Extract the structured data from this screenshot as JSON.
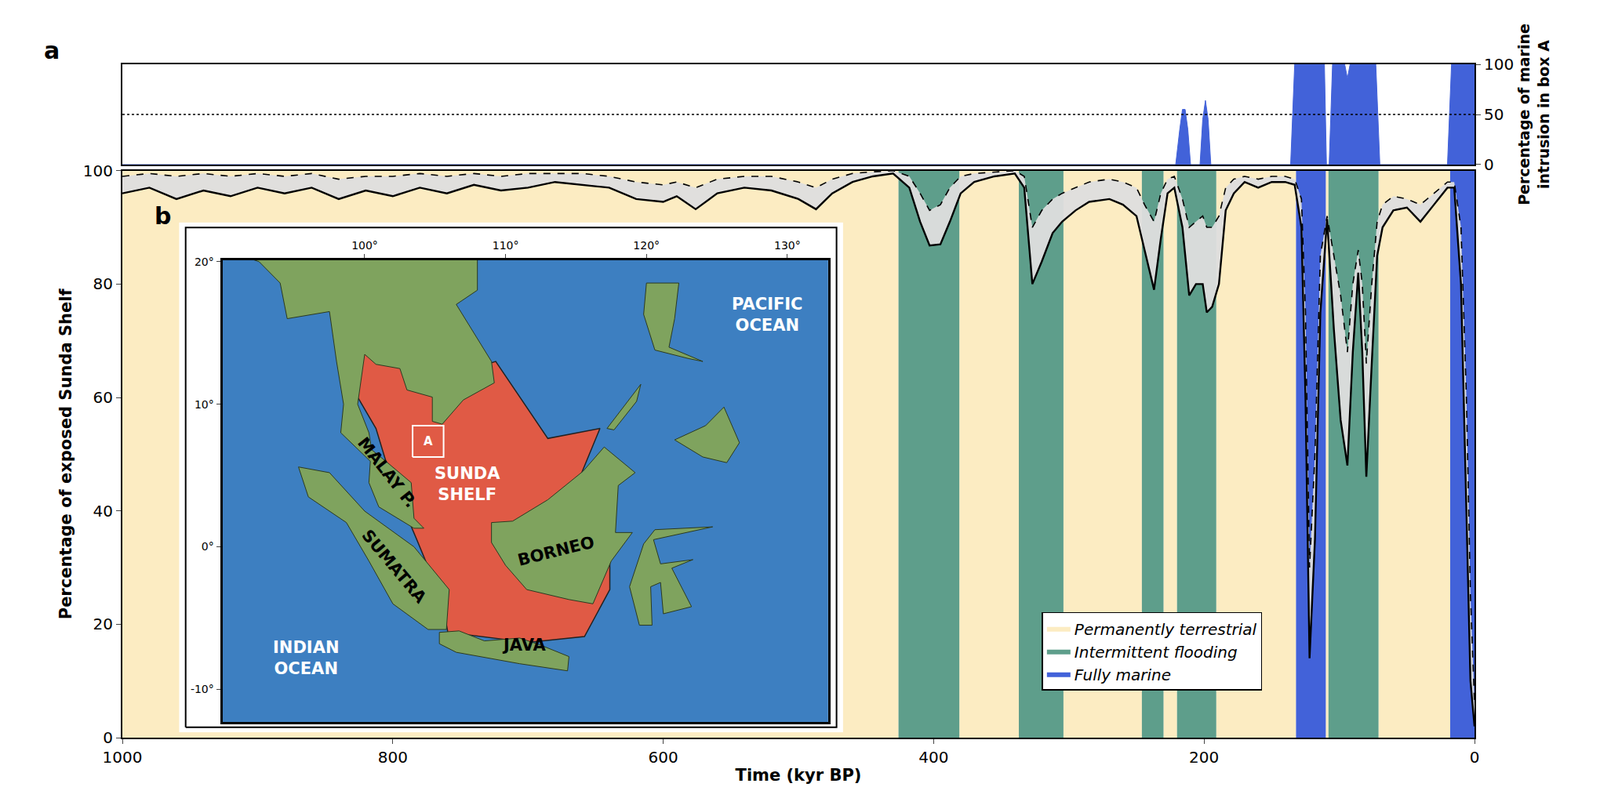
{
  "chart_data": [
    {
      "panel_label": "a",
      "type": "area",
      "y_label": [
        "Percentage of marine",
        "intrusion in box A"
      ],
      "x": [
        1000,
        221,
        218,
        216,
        214,
        212,
        210,
        203,
        201,
        199,
        197,
        195,
        136,
        133,
        111,
        109.5,
        107.5,
        105,
        96,
        94,
        92,
        73,
        70,
        20,
        17,
        0
      ],
      "values": [
        0,
        0,
        35,
        55,
        55,
        35,
        0,
        0,
        45,
        64,
        45,
        0,
        0,
        100,
        100,
        0,
        0,
        100,
        100,
        86,
        100,
        100,
        0,
        0,
        100,
        100
      ],
      "color": "#4262d9",
      "xlim": [
        1000,
        0
      ],
      "ylim": [
        0,
        100
      ],
      "yticks": [
        0,
        50,
        100
      ],
      "tick_labels": "y",
      "reference_lines": [
        {
          "value": 50,
          "line_style": "dotted"
        }
      ]
    },
    {
      "panel_label": "b",
      "type": "line",
      "x_label": "Time (kyr BP)",
      "y_label": "Percentage of exposed Sunda Shelf",
      "x": [
        1000,
        980,
        960,
        940,
        920,
        900,
        880,
        860,
        840,
        820,
        800,
        780,
        760,
        740,
        720,
        700,
        680,
        660,
        640,
        620,
        600,
        590,
        576,
        560,
        540,
        520,
        500,
        487,
        475,
        460,
        445,
        430,
        418,
        410,
        403,
        395,
        388,
        380,
        370,
        355,
        340,
        333,
        327,
        320,
        312,
        305,
        295,
        285,
        270,
        260,
        250,
        244,
        237,
        232,
        227,
        222,
        216,
        211,
        206,
        201,
        198,
        194,
        189,
        184,
        178,
        170,
        160,
        150,
        140,
        133,
        128,
        125,
        122,
        118,
        114,
        109,
        104,
        99,
        94,
        90,
        86,
        83,
        80,
        76,
        72,
        68,
        60,
        50,
        40,
        30,
        20,
        15,
        10,
        6,
        3,
        0
      ],
      "series": [
        {
          "line_style": "dashed",
          "color": "#000000",
          "values": [
            99,
            99.5,
            99,
            99.5,
            99,
            99.5,
            99,
            99.5,
            98.5,
            99,
            99,
            99.5,
            99,
            99.5,
            99,
            99.5,
            99.5,
            99.5,
            99,
            98,
            97.5,
            98,
            97,
            98.5,
            99,
            99,
            98,
            97,
            98.5,
            99.5,
            99.8,
            100,
            99,
            96,
            93,
            94,
            97,
            99,
            99.5,
            99.8,
            100,
            99,
            90,
            93,
            95,
            96,
            97,
            98,
            98.5,
            98,
            97,
            94,
            91,
            96,
            98.5,
            99,
            95,
            90,
            91,
            92,
            90,
            90,
            92,
            97,
            98.5,
            99,
            98.5,
            99,
            99,
            98.5,
            95,
            75,
            30,
            50,
            85,
            92,
            85,
            78,
            68,
            80,
            86,
            80,
            66,
            80,
            91,
            94,
            95.5,
            95,
            94,
            96,
            98,
            98,
            90,
            60,
            25,
            6
          ]
        },
        {
          "line_style": "solid",
          "color": "#000000",
          "values": [
            96,
            97,
            95,
            96.5,
            95.5,
            97,
            96,
            97,
            95,
            96.5,
            95.5,
            97,
            96,
            97.5,
            96.5,
            97,
            98,
            97.5,
            97,
            95,
            94.5,
            95.5,
            93.2,
            96,
            97,
            96.5,
            95,
            93.2,
            96,
            98,
            99,
            99.5,
            97,
            91,
            86.8,
            87,
            91,
            96,
            98,
            99,
            99.5,
            97,
            80,
            84,
            89,
            91,
            93,
            94.5,
            95,
            94,
            92,
            86,
            79,
            88,
            96,
            97,
            90,
            78,
            80,
            80,
            75,
            76,
            80,
            93,
            96,
            98,
            97,
            98,
            98,
            97.5,
            90,
            60,
            14,
            35,
            75,
            91.5,
            72,
            56,
            48,
            68,
            82,
            68,
            46,
            66,
            85,
            90,
            93,
            93.5,
            91,
            94,
            97,
            97,
            80,
            40,
            10,
            2
          ]
        }
      ],
      "xlim": [
        1000,
        0
      ],
      "xticks": [
        1000,
        800,
        600,
        400,
        200,
        0
      ],
      "ylim": [
        0,
        100
      ],
      "yticks": [
        0,
        20,
        40,
        60,
        80,
        100
      ],
      "legend": "lower right",
      "regimes": [
        {
          "name": "Permanently terrestrial",
          "color": "#fcecc2",
          "intervals": [
            [
              1000,
              426
            ],
            [
              381,
              337
            ],
            [
              304,
              246
            ],
            [
              230,
              220
            ],
            [
              191,
              132
            ],
            [
              110,
              108
            ],
            [
              71,
              18
            ]
          ]
        },
        {
          "name": "Intermittent flooding",
          "color": "#5e9e8b",
          "intervals": [
            [
              426,
              381
            ],
            [
              337,
              304
            ],
            [
              246,
              230
            ],
            [
              220,
              191
            ],
            [
              108,
              71
            ]
          ]
        },
        {
          "name": "Fully marine",
          "color": "#4262d9",
          "intervals": [
            [
              132,
              110
            ],
            [
              18,
              0
            ]
          ]
        }
      ]
    }
  ],
  "inset_map": {
    "xlim": [
      89.9,
      132.9
    ],
    "xticks": [
      {
        "value": 100,
        "label": "100°"
      },
      {
        "value": 110,
        "label": "110°"
      },
      {
        "value": 120,
        "label": "120°"
      },
      {
        "value": 130,
        "label": "130°"
      }
    ],
    "ylim": [
      -12.3,
      20.1
    ],
    "yticks": [
      {
        "value": 20,
        "label": "20°"
      },
      {
        "value": 10,
        "label": "10°"
      },
      {
        "value": 0,
        "label": "0°"
      },
      {
        "value": -10,
        "label": "-10°"
      }
    ],
    "highlight_color": "#e05a45",
    "box_label": "A",
    "labels": [
      {
        "lines": [
          "PACIFIC",
          "OCEAN"
        ],
        "color": "#ffffff"
      },
      {
        "lines": [
          "INDIAN",
          "OCEAN"
        ],
        "color": "#ffffff"
      },
      {
        "lines": [
          "SUNDA",
          "SHELF"
        ],
        "color": "#ffffff"
      },
      {
        "lines": [
          "MALAY P."
        ],
        "color": "#000000"
      },
      {
        "lines": [
          "SUMATRA"
        ],
        "color": "#000000"
      },
      {
        "lines": [
          "BORNEO"
        ],
        "color": "#000000"
      },
      {
        "lines": [
          "JAVA"
        ],
        "color": "#000000"
      }
    ]
  }
}
